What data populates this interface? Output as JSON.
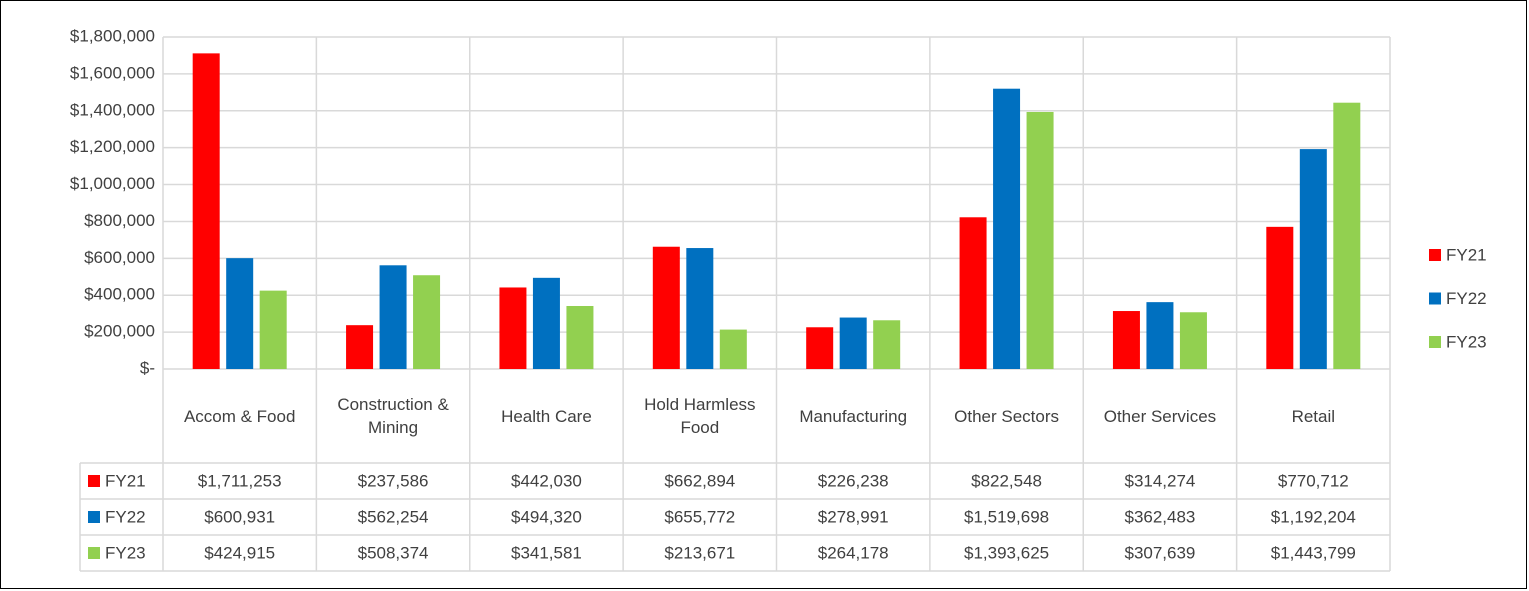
{
  "chart_data": {
    "type": "bar",
    "categories": [
      "Accom & Food",
      "Construction & Mining",
      "Health Care",
      "Hold Harmless Food",
      "Manufacturing",
      "Other Sectors",
      "Other Services",
      "Retail"
    ],
    "series": [
      {
        "name": "FY21",
        "color": "#ff0000",
        "values": [
          1711253,
          237586,
          442030,
          662894,
          226238,
          822548,
          314274,
          770712
        ],
        "value_labels": [
          "$1,711,253",
          "$237,586",
          "$442,030",
          "$662,894",
          "$226,238",
          "$822,548",
          "$314,274",
          "$770,712"
        ]
      },
      {
        "name": "FY22",
        "color": "#0070c0",
        "values": [
          600931,
          562254,
          494320,
          655772,
          278991,
          1519698,
          362483,
          1192204
        ],
        "value_labels": [
          "$600,931",
          "$562,254",
          "$494,320",
          "$655,772",
          "$278,991",
          "$1,519,698",
          "$362,483",
          "$1,192,204"
        ]
      },
      {
        "name": "FY23",
        "color": "#92d050",
        "values": [
          424915,
          508374,
          341581,
          213671,
          264178,
          1393625,
          307639,
          1443799
        ],
        "value_labels": [
          "$424,915",
          "$508,374",
          "$341,581",
          "$213,671",
          "$264,178",
          "$1,393,625",
          "$307,639",
          "$1,443,799"
        ]
      }
    ],
    "ylim": [
      0,
      1800000
    ],
    "yticks": [
      {
        "value": 0,
        "label": "$-"
      },
      {
        "value": 200000,
        "label": "$200,000"
      },
      {
        "value": 400000,
        "label": "$400,000"
      },
      {
        "value": 600000,
        "label": "$600,000"
      },
      {
        "value": 800000,
        "label": "$800,000"
      },
      {
        "value": 1000000,
        "label": "$1,000,000"
      },
      {
        "value": 1200000,
        "label": "$1,200,000"
      },
      {
        "value": 1400000,
        "label": "$1,400,000"
      },
      {
        "value": 1600000,
        "label": "$1,600,000"
      },
      {
        "value": 1800000,
        "label": "$1,800,000"
      }
    ],
    "grid": true,
    "legend": "right"
  }
}
